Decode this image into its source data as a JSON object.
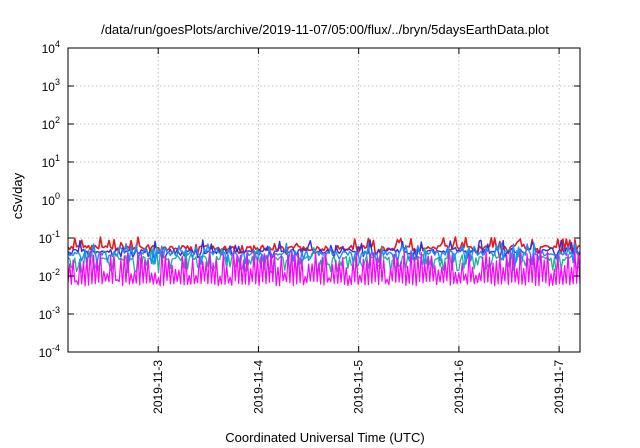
{
  "chart_data": {
    "type": "line",
    "title": "/data/run/goesPlots/archive/2019-11-07/05:00/flux/../bryn/5daysEarthData.plot",
    "xlabel": "Coordinated Universal Time (UTC)",
    "ylabel": "cSv/day",
    "yscale": "log",
    "ylim": [
      0.0001,
      10000
    ],
    "xlim": [
      "2019-11-02T02:24",
      "2019-11-07T05:00"
    ],
    "grid": true,
    "yticks": [
      {
        "base": "10",
        "exp": "-4",
        "value": 0.0001
      },
      {
        "base": "10",
        "exp": "-3",
        "value": 0.001
      },
      {
        "base": "10",
        "exp": "-2",
        "value": 0.01
      },
      {
        "base": "10",
        "exp": "-1",
        "value": 0.1
      },
      {
        "base": "10",
        "exp": "0",
        "value": 1
      },
      {
        "base": "10",
        "exp": "1",
        "value": 10
      },
      {
        "base": "10",
        "exp": "2",
        "value": 100
      },
      {
        "base": "10",
        "exp": "3",
        "value": 1000
      },
      {
        "base": "10",
        "exp": "4",
        "value": 10000
      }
    ],
    "xticks": [
      {
        "label": "2019-11-3",
        "value": "2019-11-03T00:00"
      },
      {
        "label": "2019-11-4",
        "value": "2019-11-04T00:00"
      },
      {
        "label": "2019-11-5",
        "value": "2019-11-05T00:00"
      },
      {
        "label": "2019-11-6",
        "value": "2019-11-06T00:00"
      },
      {
        "label": "2019-11-7",
        "value": "2019-11-07T00:00"
      }
    ],
    "series": [
      {
        "color": "#e41a1c",
        "level": 0.055,
        "spike_max": 0.11,
        "dip_min": 0.035,
        "dip_prob": 0.08,
        "width": 1.6
      },
      {
        "color": "#3a2bd6",
        "level": 0.045,
        "spike_max": 0.09,
        "dip_min": 0.028,
        "dip_prob": 0.1,
        "width": 1.4
      },
      {
        "color": "#1ab394",
        "level": 0.03,
        "spike_max": 0.06,
        "dip_min": 0.012,
        "dip_prob": 0.3,
        "width": 1.3
      },
      {
        "color": "#1a8cff",
        "level": 0.04,
        "spike_max": 0.075,
        "dip_min": 0.02,
        "dip_prob": 0.15,
        "width": 1.4
      },
      {
        "color": "#ff00ff",
        "level": 0.007,
        "spike_max": 0.045,
        "dip_min": 0.0055,
        "dip_prob": 0.0,
        "width": 1.2
      }
    ]
  }
}
